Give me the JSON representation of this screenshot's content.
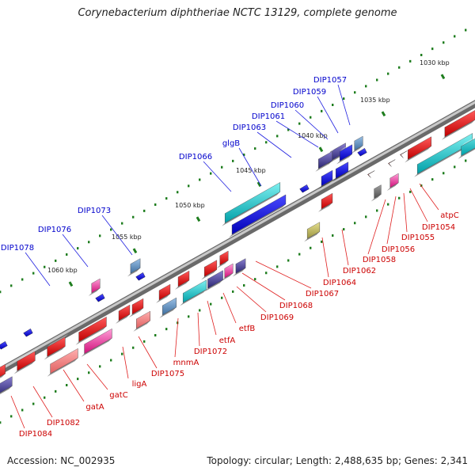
{
  "title": "Corynebacterium diphtheriae NCTC 13129, complete genome",
  "accession": "Accession: NC_002935",
  "footer": "Topology: circular; Length: 2,488,635 bp; Genes: 2,341",
  "colors": {
    "backbone": "#8a8a8a",
    "tick": "#1e7d1e",
    "upper_label": "#0000cc",
    "lower_label": "#cc0000"
  },
  "kbp_marks": [
    "1030 kbp",
    "1035 kbp",
    "1040 kbp",
    "1045 kbp",
    "1050 kbp",
    "1055 kbp",
    "1060 kbp"
  ],
  "upper_labels": [
    "DIP1057",
    "DIP1059",
    "DIP1060",
    "DIP1061",
    "DIP1063",
    "glgB",
    "DIP1066",
    "DIP1073",
    "DIP1076",
    "DIP1078"
  ],
  "lower_labels": [
    "atpC",
    "DIP1054",
    "DIP1055",
    "DIP1056",
    "DIP1058",
    "DIP1062",
    "DIP1064",
    "DIP1067",
    "DIP1068",
    "DIP1069",
    "etfB",
    "etfA",
    "DIP1072",
    "mnmA",
    "DIP1075",
    "ligA",
    "gatC",
    "gatA",
    "DIP1082",
    "DIP1084"
  ]
}
